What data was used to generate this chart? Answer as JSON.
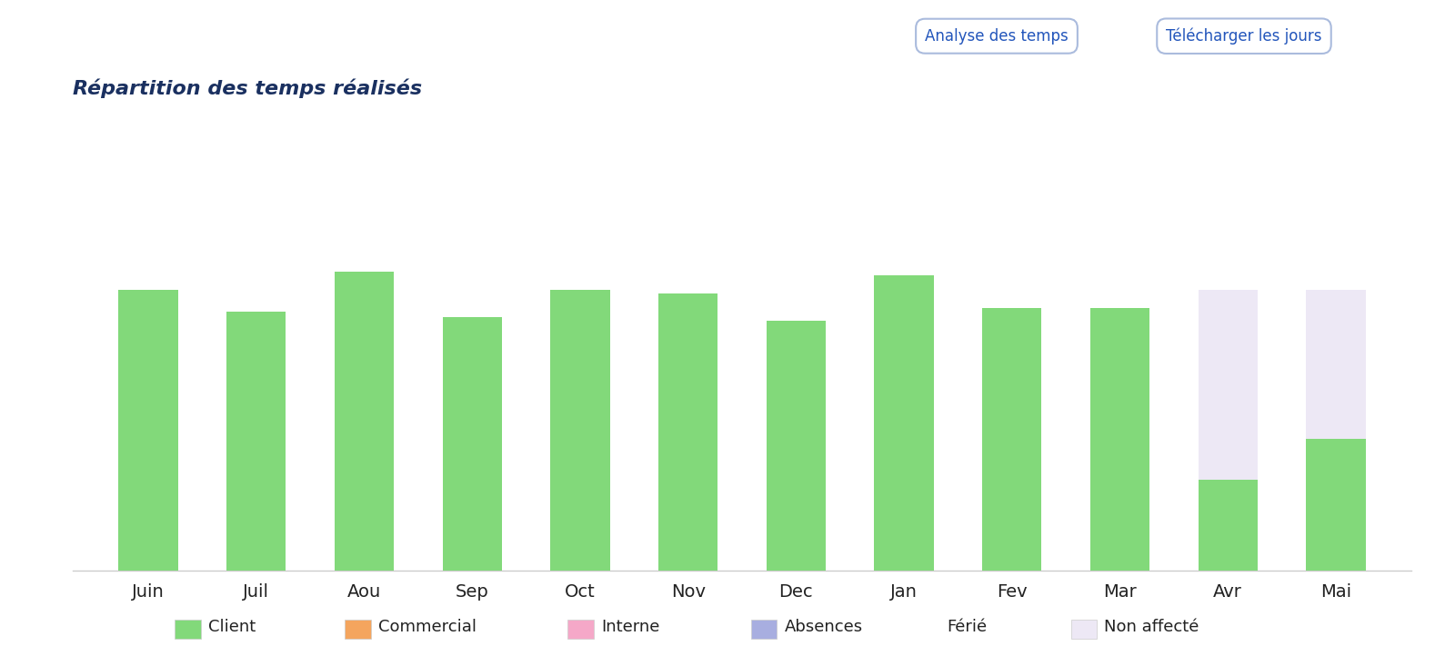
{
  "months": [
    "Juin",
    "Juil",
    "Aou",
    "Sep",
    "Oct",
    "Nov",
    "Dec",
    "Jan",
    "Fev",
    "Mar",
    "Avr",
    "Mai"
  ],
  "client": [
    155,
    143,
    165,
    140,
    155,
    153,
    138,
    163,
    145,
    145,
    50,
    73
  ],
  "non_affecte": [
    0,
    0,
    0,
    0,
    0,
    0,
    0,
    0,
    0,
    0,
    155,
    155
  ],
  "title": "Répartition des temps réalisés",
  "button1": "Analyse des temps",
  "button2": "Télécharger les jours",
  "legend_items": [
    {
      "label": "Client",
      "color": "#82d97a",
      "has_patch": true
    },
    {
      "label": "Commercial",
      "color": "#f4a55e",
      "has_patch": true
    },
    {
      "label": "Interne",
      "color": "#f5a8c8",
      "has_patch": true
    },
    {
      "label": "Absences",
      "color": "#a8aee0",
      "has_patch": true
    },
    {
      "label": "Férié",
      "color": null,
      "has_patch": false
    },
    {
      "label": "Non affecté",
      "color": "#ede8f5",
      "has_patch": true
    }
  ],
  "client_color": "#82d97a",
  "non_affecte_color": "#ede8f5",
  "bg_color": "#ffffff",
  "title_color": "#1a3060",
  "bar_width": 0.55,
  "ylim": [
    0,
    210
  ],
  "button_color": "#2255bb",
  "button_border": "#aabbdd"
}
